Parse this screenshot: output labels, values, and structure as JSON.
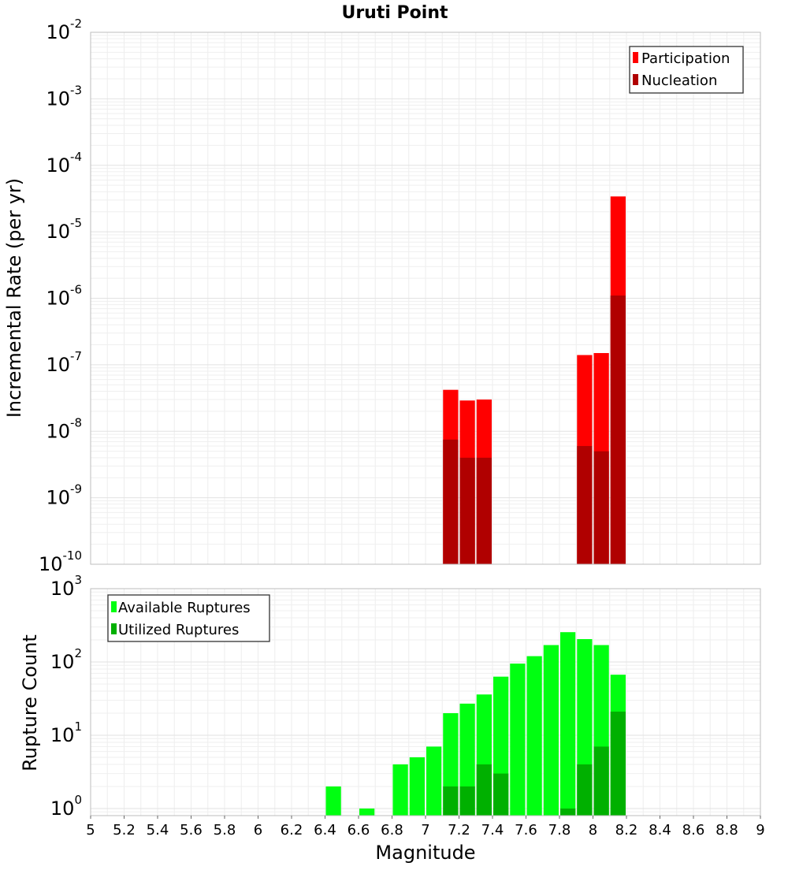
{
  "chart_data": [
    {
      "type": "bar",
      "title": "Uruti Point",
      "xlabel": "",
      "ylabel": "Incremental Rate (per yr)",
      "yscale": "log",
      "ylim": [
        1e-10,
        0.01
      ],
      "xlim": [
        5,
        9
      ],
      "grid": true,
      "legend_position": "top-right",
      "bin_width": 0.1,
      "y_ticks": [
        {
          "base": "10",
          "exp": "-10"
        },
        {
          "base": "10",
          "exp": "-9"
        },
        {
          "base": "10",
          "exp": "-8"
        },
        {
          "base": "10",
          "exp": "-7"
        },
        {
          "base": "10",
          "exp": "-6"
        },
        {
          "base": "10",
          "exp": "-5"
        },
        {
          "base": "10",
          "exp": "-4"
        },
        {
          "base": "10",
          "exp": "-3"
        },
        {
          "base": "10",
          "exp": "-2"
        }
      ],
      "series": [
        {
          "name": "Participation",
          "color": "#ff0000",
          "x": [
            7.15,
            7.25,
            7.35,
            7.95,
            8.05,
            8.15
          ],
          "values": [
            4.2e-08,
            2.9e-08,
            3e-08,
            1.4e-07,
            1.5e-07,
            3.4e-05
          ]
        },
        {
          "name": "Nucleation",
          "color": "#b00000",
          "x": [
            7.15,
            7.25,
            7.35,
            7.95,
            8.05,
            8.15
          ],
          "values": [
            7.5e-09,
            4e-09,
            4e-09,
            6e-09,
            5e-09,
            1.1e-06
          ]
        }
      ]
    },
    {
      "type": "bar",
      "title": "",
      "xlabel": "Magnitude",
      "ylabel": "Rupture Count",
      "yscale": "log",
      "ylim": [
        0.8,
        1000
      ],
      "xlim": [
        5,
        9
      ],
      "grid": true,
      "legend_position": "top-left",
      "bin_width": 0.1,
      "x_ticks": [
        "5",
        "5.2",
        "5.4",
        "5.6",
        "5.8",
        "6",
        "6.2",
        "6.4",
        "6.6",
        "6.8",
        "7",
        "7.2",
        "7.4",
        "7.6",
        "7.8",
        "8",
        "8.2",
        "8.4",
        "8.6",
        "8.8",
        "9"
      ],
      "y_ticks": [
        {
          "base": "10",
          "exp": "0"
        },
        {
          "base": "10",
          "exp": "1"
        },
        {
          "base": "10",
          "exp": "2"
        },
        {
          "base": "10",
          "exp": "3"
        }
      ],
      "series": [
        {
          "name": "Available Ruptures",
          "color": "#00ff11",
          "x": [
            6.45,
            6.65,
            6.85,
            6.95,
            7.05,
            7.15,
            7.25,
            7.35,
            7.45,
            7.55,
            7.65,
            7.75,
            7.85,
            7.95,
            8.05,
            8.15
          ],
          "values": [
            2,
            1,
            4,
            5,
            7,
            20,
            27,
            36,
            63,
            95,
            120,
            170,
            255,
            205,
            170,
            67
          ]
        },
        {
          "name": "Utilized Ruptures",
          "color": "#00b000",
          "x": [
            7.15,
            7.25,
            7.35,
            7.45,
            7.85,
            7.95,
            8.05,
            8.15
          ],
          "values": [
            2,
            2,
            4,
            3,
            1,
            4,
            7,
            21
          ]
        }
      ]
    }
  ]
}
